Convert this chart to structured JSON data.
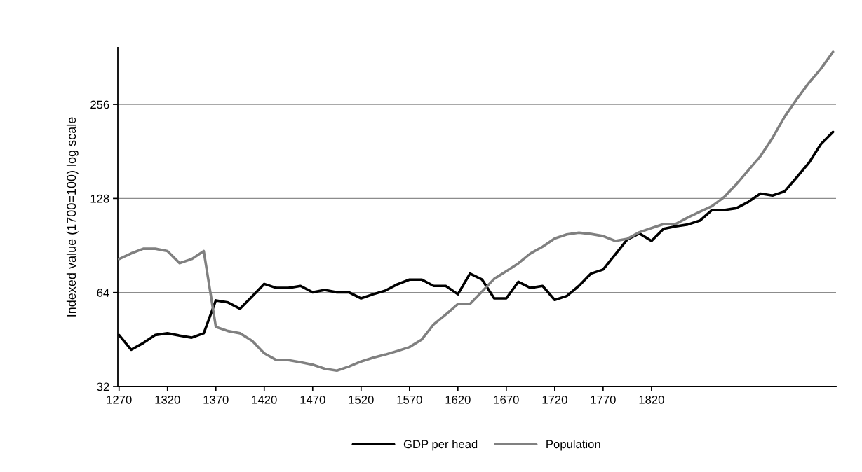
{
  "chart_data": {
    "type": "line",
    "ylabel": "Indexed value (1700=100) log scale",
    "categories": [
      "1270",
      null,
      null,
      null,
      "1320",
      null,
      null,
      null,
      "1370",
      null,
      null,
      null,
      "1420",
      null,
      null,
      null,
      "1470",
      null,
      null,
      null,
      "1520",
      null,
      null,
      null,
      "1570",
      null,
      null,
      null,
      "1620",
      null,
      null,
      null,
      "1670",
      null,
      null,
      null,
      "1720",
      null,
      null,
      null,
      "1770",
      null,
      null,
      null,
      "1820",
      null,
      null,
      null,
      null,
      null,
      null,
      null,
      null,
      null,
      null,
      null,
      null,
      null,
      null,
      null
    ],
    "series": [
      {
        "name": "GDP per head",
        "color": "#000000",
        "values": [
          46.8,
          42.0,
          44.1,
          46.8,
          47.4,
          46.6,
          45.9,
          47.4,
          60.4,
          59.5,
          56.8,
          62.2,
          68.2,
          66.2,
          66.2,
          67.2,
          64.1,
          65.2,
          64.1,
          64.1,
          61.3,
          63.2,
          64.9,
          68.0,
          70.4,
          70.4,
          67.2,
          67.2,
          63.2,
          73.6,
          70.4,
          61.3,
          61.3,
          69.3,
          66.2,
          67.2,
          60.6,
          62.4,
          67.2,
          73.6,
          75.8,
          84.7,
          94.7,
          98.9,
          93.6,
          102.3,
          104.2,
          105.6,
          108.7,
          117.5,
          117.5,
          119.1,
          124.8,
          132.6,
          130.8,
          134.8,
          149.5,
          166.3,
          191,
          209
        ]
      },
      {
        "name": "Population",
        "color": "#808080",
        "values": [
          81.9,
          85.4,
          88.4,
          88.4,
          86.9,
          79.5,
          81.9,
          86.9,
          49.7,
          48.2,
          47.4,
          44.8,
          40.9,
          38.9,
          38.9,
          38.3,
          37.6,
          36.5,
          36.0,
          37.1,
          38.5,
          39.6,
          40.5,
          41.6,
          42.8,
          45.2,
          50.6,
          54.4,
          58.8,
          58.8,
          64.5,
          70.8,
          74.9,
          79.4,
          85.4,
          89.7,
          95.3,
          98.2,
          99.5,
          98.5,
          97.0,
          93.6,
          95.1,
          99.8,
          102.9,
          106.0,
          106.0,
          111.2,
          116.1,
          121.0,
          129.2,
          142.0,
          157.5,
          174.7,
          200,
          233.8,
          266,
          300,
          333,
          377
        ]
      }
    ],
    "log": "y",
    "ylim": [
      32,
      389
    ],
    "yticks": [
      32,
      64,
      128,
      256
    ],
    "grid": "y",
    "legend": "bottom",
    "marker": "none",
    "line_style": "solid"
  }
}
